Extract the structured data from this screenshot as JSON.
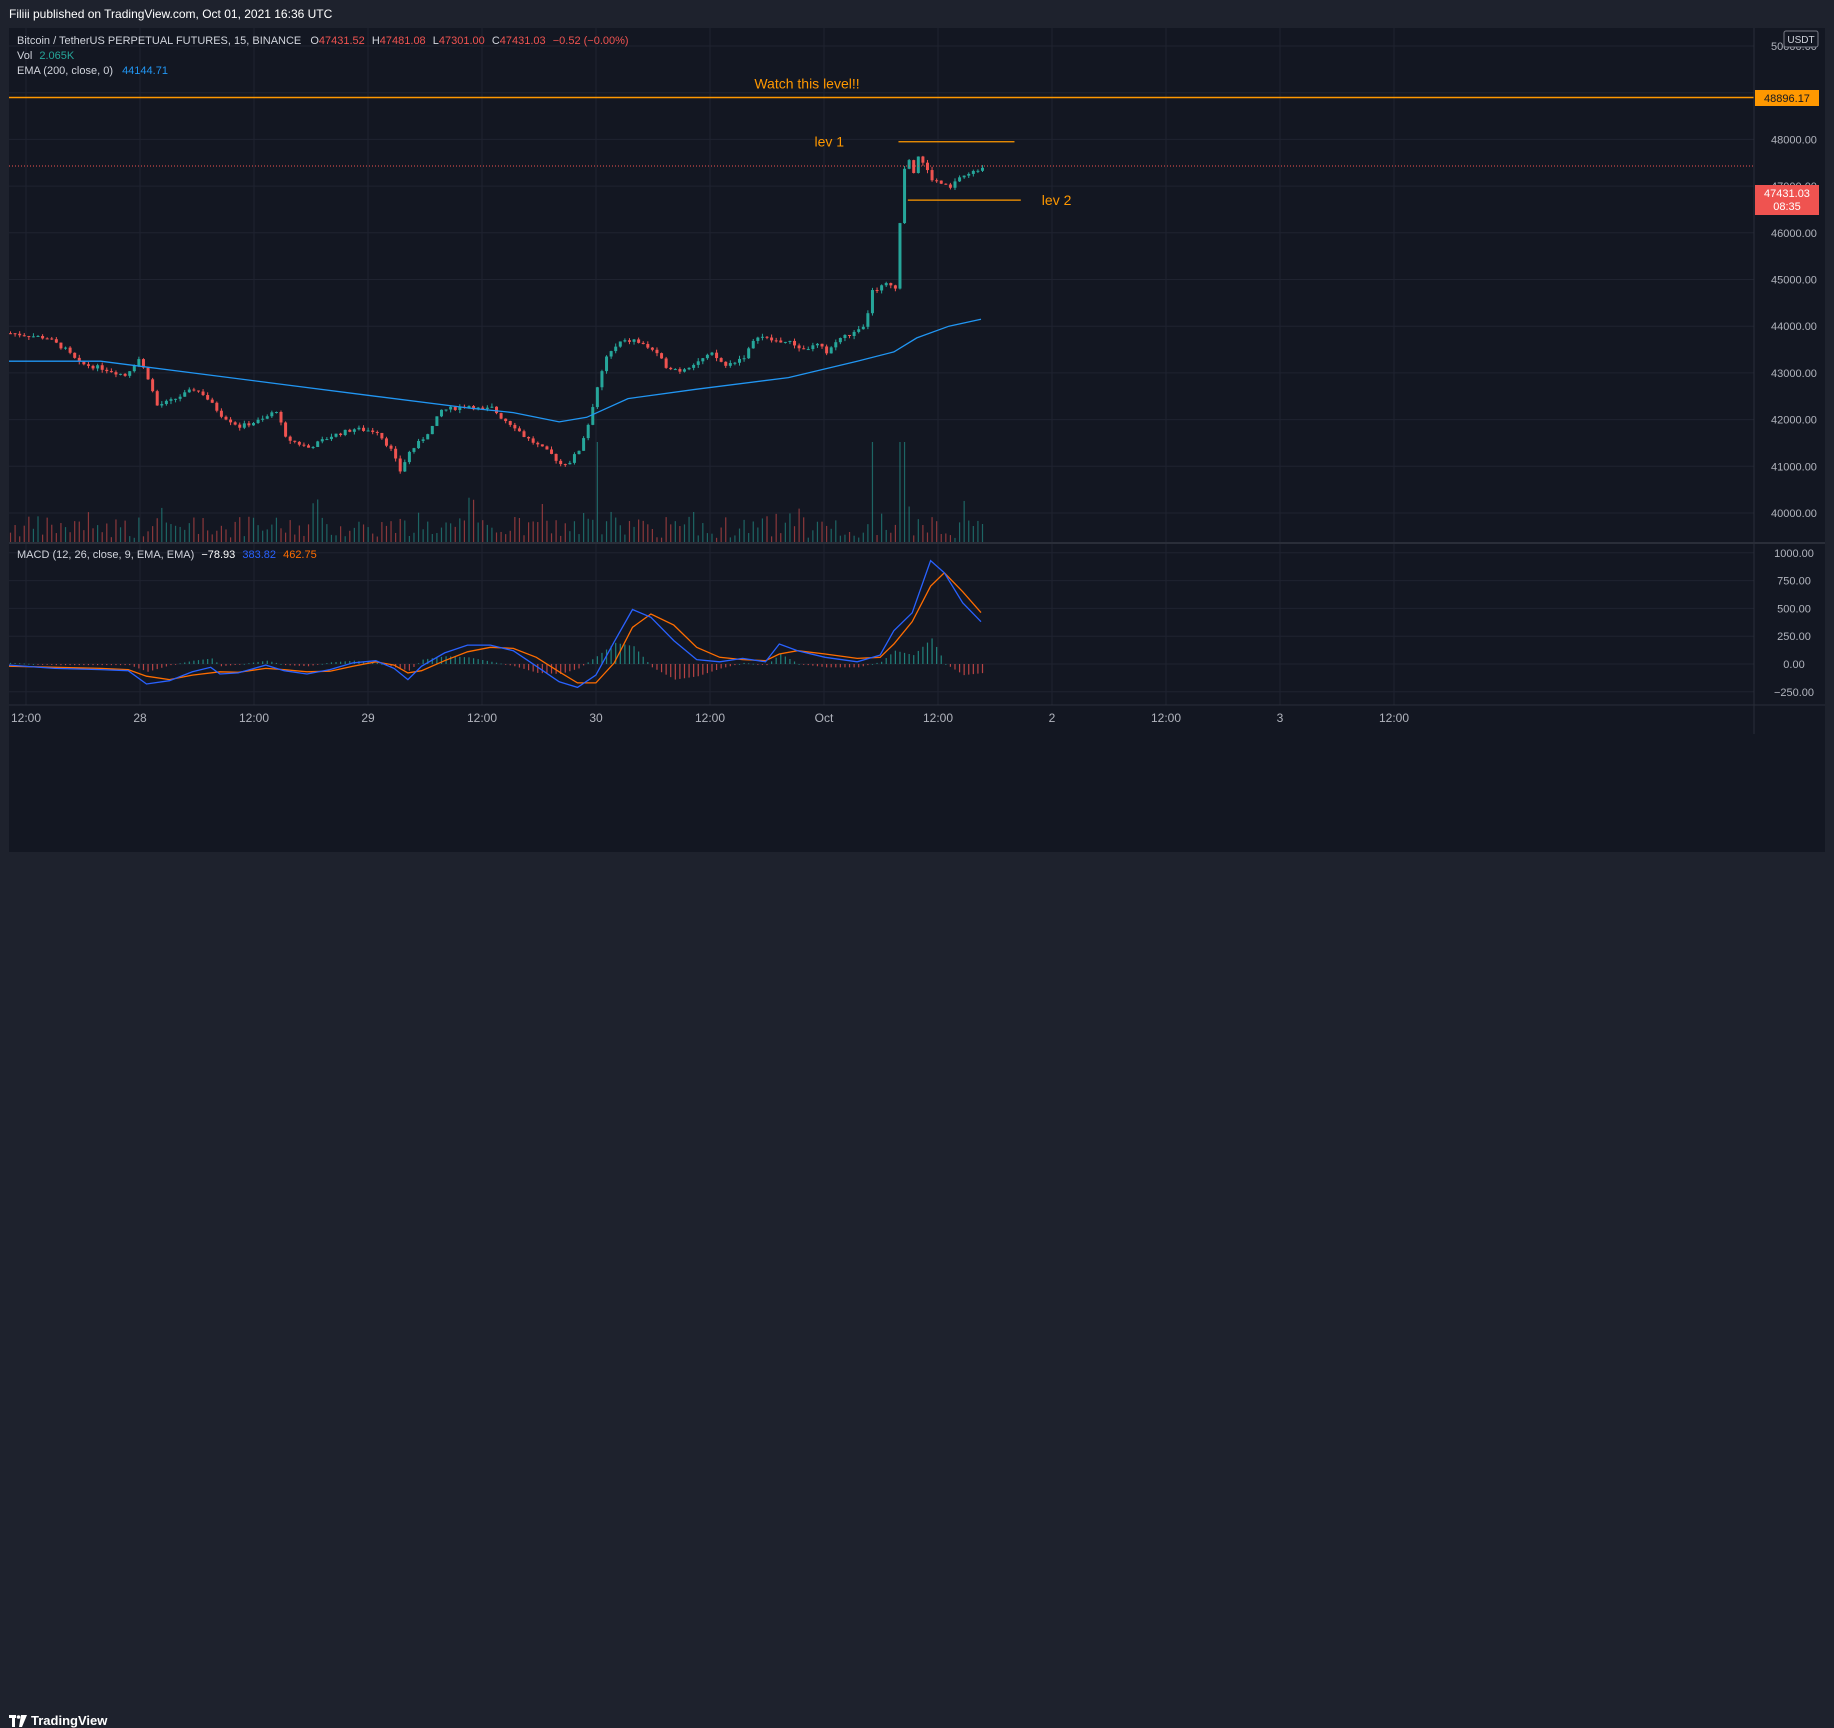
{
  "header": {
    "publisher_line": "Filiii published on TradingView.com, Oct 01, 2021 16:36 UTC"
  },
  "legend": {
    "symbol": "Bitcoin / TetherUS PERPETUAL FUTURES, 15, BINANCE",
    "open_label": "O",
    "open": "47431.52",
    "high_label": "H",
    "high": "47481.08",
    "low_label": "L",
    "low": "47301.00",
    "close_label": "C",
    "close": "47431.03",
    "change": "−0.52 (−0.00%)",
    "vol_label": "Vol",
    "vol_value": "2.065K",
    "ema_label": "EMA (200, close, 0)",
    "ema_value": "44144.71",
    "macd_label": "MACD (12, 26, close, 9, EMA, EMA)",
    "macd_value": "−78.93",
    "macd_line_value": "383.82",
    "macd_signal_value": "462.75"
  },
  "price_axis": {
    "currency": "USDT",
    "ticks": [
      "50000.00",
      "48896.17",
      "48000.00",
      "47000.00",
      "46000.00",
      "45000.00",
      "44000.00",
      "43000.00",
      "42000.00",
      "41000.00",
      "40000.00"
    ],
    "level_badge": "48896.17",
    "last_price_badge": "47431.03",
    "countdown": "08:35"
  },
  "macd_axis": {
    "ticks": [
      "1000.00",
      "750.00",
      "500.00",
      "250.00",
      "0.00",
      "−250.00"
    ]
  },
  "time_axis": {
    "ticks": [
      "12:00",
      "28",
      "12:00",
      "29",
      "12:00",
      "30",
      "12:00",
      "Oct",
      "12:00",
      "2",
      "12:00",
      "3",
      "12:00"
    ]
  },
  "annotations": {
    "watch_text": "Watch this level!!",
    "lev1": "lev 1",
    "lev2": "lev 2"
  },
  "colors": {
    "up": "#26a69a",
    "down": "#ef5350",
    "ema": "#2196f3",
    "macd": "#2962ff",
    "signal": "#ff6d00",
    "level": "#ff9800",
    "background": "#131722"
  },
  "footer": {
    "brand": "TradingView"
  },
  "chart_data": {
    "type": "candlestick",
    "symbol": "Bitcoin / TetherUS PERPETUAL FUTURES, 15, BINANCE",
    "ylim": [
      39400,
      50300
    ],
    "horizontal_levels": [
      {
        "label": "Watch this level!!",
        "price": 48896.17
      },
      {
        "label": "lev 1",
        "price": 47950
      },
      {
        "label": "lev 2",
        "price": 46700
      }
    ],
    "price_path": [
      [
        0,
        43850
      ],
      [
        8,
        43750
      ],
      [
        12,
        43500
      ],
      [
        15,
        43200
      ],
      [
        20,
        43100
      ],
      [
        25,
        42950
      ],
      [
        28,
        43300
      ],
      [
        30,
        42900
      ],
      [
        32,
        42300
      ],
      [
        35,
        42400
      ],
      [
        40,
        42650
      ],
      [
        42,
        42550
      ],
      [
        46,
        42100
      ],
      [
        50,
        41850
      ],
      [
        55,
        42000
      ],
      [
        58,
        42200
      ],
      [
        60,
        41600
      ],
      [
        65,
        41400
      ],
      [
        70,
        41650
      ],
      [
        75,
        41800
      ],
      [
        80,
        41750
      ],
      [
        83,
        41350
      ],
      [
        85,
        40900
      ],
      [
        87,
        41300
      ],
      [
        90,
        41600
      ],
      [
        92,
        41850
      ],
      [
        94,
        42200
      ],
      [
        97,
        42250
      ],
      [
        100,
        42300
      ],
      [
        103,
        42200
      ],
      [
        105,
        42250
      ],
      [
        107,
        42050
      ],
      [
        110,
        41850
      ],
      [
        112,
        41650
      ],
      [
        115,
        41450
      ],
      [
        118,
        41250
      ],
      [
        120,
        41050
      ],
      [
        122,
        41100
      ],
      [
        124,
        41350
      ],
      [
        126,
        41900
      ],
      [
        128,
        42700
      ],
      [
        130,
        43350
      ],
      [
        133,
        43650
      ],
      [
        136,
        43700
      ],
      [
        140,
        43500
      ],
      [
        143,
        43150
      ],
      [
        146,
        43050
      ],
      [
        150,
        43250
      ],
      [
        153,
        43400
      ],
      [
        156,
        43150
      ],
      [
        160,
        43350
      ],
      [
        163,
        43800
      ],
      [
        166,
        43700
      ],
      [
        170,
        43650
      ],
      [
        173,
        43500
      ],
      [
        176,
        43600
      ],
      [
        178,
        43450
      ],
      [
        181,
        43750
      ],
      [
        184,
        43850
      ],
      [
        186,
        43950
      ],
      [
        187,
        44300
      ],
      [
        188,
        44750
      ],
      [
        191,
        44900
      ],
      [
        193,
        44850
      ],
      [
        194,
        46200
      ],
      [
        195,
        47400
      ],
      [
        196,
        47600
      ],
      [
        197,
        47300
      ],
      [
        198,
        47650
      ],
      [
        199,
        47500
      ],
      [
        201,
        47150
      ],
      [
        203,
        47050
      ],
      [
        205,
        46950
      ],
      [
        207,
        47200
      ],
      [
        209,
        47250
      ],
      [
        211,
        47350
      ],
      [
        212,
        47430
      ]
    ],
    "ema_path": [
      [
        0,
        43250
      ],
      [
        20,
        43250
      ],
      [
        40,
        43000
      ],
      [
        60,
        42750
      ],
      [
        80,
        42500
      ],
      [
        100,
        42250
      ],
      [
        110,
        42150
      ],
      [
        120,
        41950
      ],
      [
        126,
        42050
      ],
      [
        135,
        42450
      ],
      [
        150,
        42650
      ],
      [
        170,
        42900
      ],
      [
        185,
        43250
      ],
      [
        193,
        43450
      ],
      [
        198,
        43750
      ],
      [
        205,
        44000
      ],
      [
        212,
        44150
      ]
    ],
    "macd_line_path": [
      [
        0,
        -10
      ],
      [
        10,
        -40
      ],
      [
        20,
        -50
      ],
      [
        26,
        -60
      ],
      [
        30,
        -180
      ],
      [
        35,
        -150
      ],
      [
        40,
        -70
      ],
      [
        44,
        -30
      ],
      [
        46,
        -90
      ],
      [
        50,
        -80
      ],
      [
        56,
        -10
      ],
      [
        60,
        -60
      ],
      [
        65,
        -90
      ],
      [
        70,
        -50
      ],
      [
        75,
        10
      ],
      [
        80,
        30
      ],
      [
        84,
        -40
      ],
      [
        87,
        -140
      ],
      [
        90,
        -20
      ],
      [
        95,
        100
      ],
      [
        100,
        170
      ],
      [
        105,
        170
      ],
      [
        110,
        120
      ],
      [
        115,
        -20
      ],
      [
        120,
        -160
      ],
      [
        124,
        -210
      ],
      [
        128,
        -100
      ],
      [
        132,
        200
      ],
      [
        136,
        490
      ],
      [
        140,
        420
      ],
      [
        145,
        210
      ],
      [
        150,
        40
      ],
      [
        155,
        20
      ],
      [
        160,
        50
      ],
      [
        165,
        20
      ],
      [
        168,
        180
      ],
      [
        172,
        120
      ],
      [
        178,
        60
      ],
      [
        185,
        20
      ],
      [
        190,
        80
      ],
      [
        193,
        300
      ],
      [
        197,
        460
      ],
      [
        201,
        930
      ],
      [
        204,
        820
      ],
      [
        208,
        550
      ],
      [
        212,
        380
      ]
    ],
    "signal_line_path": [
      [
        0,
        -20
      ],
      [
        10,
        -30
      ],
      [
        20,
        -40
      ],
      [
        26,
        -50
      ],
      [
        30,
        -110
      ],
      [
        35,
        -140
      ],
      [
        40,
        -100
      ],
      [
        46,
        -70
      ],
      [
        50,
        -75
      ],
      [
        56,
        -40
      ],
      [
        60,
        -50
      ],
      [
        65,
        -70
      ],
      [
        70,
        -65
      ],
      [
        75,
        -20
      ],
      [
        80,
        20
      ],
      [
        84,
        -10
      ],
      [
        87,
        -80
      ],
      [
        90,
        -60
      ],
      [
        95,
        30
      ],
      [
        100,
        110
      ],
      [
        105,
        150
      ],
      [
        110,
        140
      ],
      [
        115,
        60
      ],
      [
        120,
        -70
      ],
      [
        124,
        -170
      ],
      [
        128,
        -170
      ],
      [
        132,
        10
      ],
      [
        136,
        330
      ],
      [
        140,
        450
      ],
      [
        145,
        350
      ],
      [
        150,
        150
      ],
      [
        155,
        60
      ],
      [
        160,
        40
      ],
      [
        165,
        30
      ],
      [
        168,
        90
      ],
      [
        172,
        120
      ],
      [
        178,
        90
      ],
      [
        185,
        50
      ],
      [
        190,
        60
      ],
      [
        193,
        180
      ],
      [
        197,
        380
      ],
      [
        201,
        700
      ],
      [
        204,
        820
      ],
      [
        208,
        650
      ],
      [
        212,
        462
      ]
    ]
  }
}
